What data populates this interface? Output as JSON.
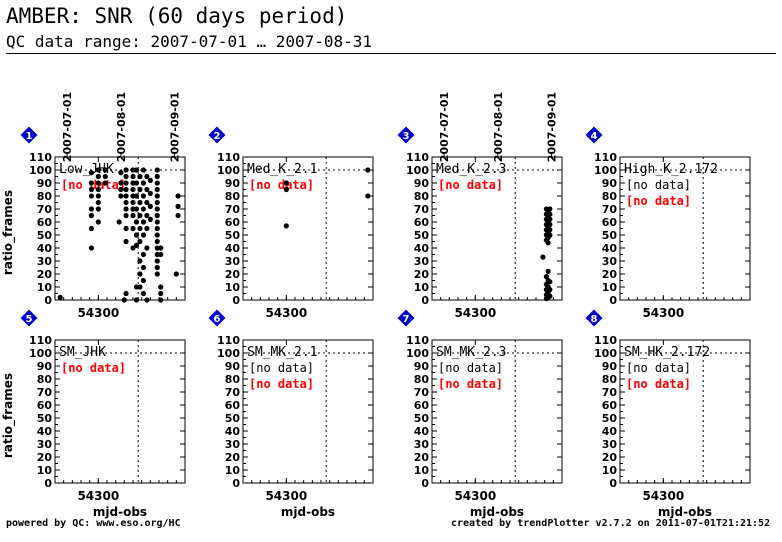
{
  "header": {
    "title": "AMBER: SNR (60 days period)",
    "subtitle": "QC data range: 2007-07-01 … 2007-08-31"
  },
  "footer": {
    "left": "powered by QC: www.eso.org/HC",
    "right": "created by trendPlotter v2.7.2 on 2011-07-01T21:21:52"
  },
  "colors": {
    "badge": "#0000cc",
    "nodata_red": "#ff0000",
    "nodata_black": "#000000",
    "points": "#000000"
  },
  "chart_data": {
    "type": "scatter",
    "x_axis": {
      "label": "mjd-obs",
      "xlim": [
        54275,
        54350
      ],
      "ticks": [
        54300
      ],
      "tick_labels": [
        "54300"
      ],
      "date_markers": [
        {
          "x": 54282,
          "label": "2007-07-01"
        },
        {
          "x": 54313,
          "label": "2007-08-01"
        },
        {
          "x": 54344,
          "label": "2007-09-01"
        }
      ],
      "vline_at": 54323
    },
    "y_axis": {
      "label": "ratio_frames",
      "ylim": [
        0,
        110
      ],
      "ticks": [
        0,
        10,
        20,
        30,
        40,
        50,
        60,
        70,
        80,
        90,
        100,
        110
      ],
      "hline_at": 100
    },
    "panels": [
      {
        "badge": "1",
        "name": "Low_JHK",
        "show_dates": true,
        "show_ylabel": true,
        "show_xlabel": false,
        "notes": [
          {
            "text": "[no data]",
            "color": "red"
          }
        ],
        "points": [
          [
            54278,
            2
          ],
          [
            54296,
            40
          ],
          [
            54296,
            55
          ],
          [
            54296,
            65
          ],
          [
            54296,
            70
          ],
          [
            54296,
            80
          ],
          [
            54296,
            85
          ],
          [
            54296,
            90
          ],
          [
            54296,
            98
          ],
          [
            54300,
            60
          ],
          [
            54300,
            70
          ],
          [
            54300,
            75
          ],
          [
            54300,
            80
          ],
          [
            54300,
            85
          ],
          [
            54300,
            90
          ],
          [
            54300,
            95
          ],
          [
            54300,
            100
          ],
          [
            54304,
            90
          ],
          [
            54304,
            95
          ],
          [
            54304,
            100
          ],
          [
            54312,
            60
          ],
          [
            54313,
            80
          ],
          [
            54313,
            85
          ],
          [
            54313,
            90
          ],
          [
            54313,
            98
          ],
          [
            54315,
            0
          ],
          [
            54316,
            5
          ],
          [
            54316,
            45
          ],
          [
            54316,
            55
          ],
          [
            54316,
            65
          ],
          [
            54316,
            70
          ],
          [
            54316,
            75
          ],
          [
            54316,
            80
          ],
          [
            54316,
            85
          ],
          [
            54316,
            90
          ],
          [
            54316,
            95
          ],
          [
            54316,
            100
          ],
          [
            54320,
            40
          ],
          [
            54320,
            55
          ],
          [
            54320,
            65
          ],
          [
            54320,
            70
          ],
          [
            54320,
            75
          ],
          [
            54320,
            80
          ],
          [
            54320,
            85
          ],
          [
            54320,
            90
          ],
          [
            54320,
            95
          ],
          [
            54320,
            100
          ],
          [
            54322,
            0
          ],
          [
            54322,
            10
          ],
          [
            54322,
            42
          ],
          [
            54322,
            50
          ],
          [
            54322,
            60
          ],
          [
            54322,
            70
          ],
          [
            54322,
            80
          ],
          [
            54322,
            90
          ],
          [
            54322,
            100
          ],
          [
            54324,
            10
          ],
          [
            54324,
            20
          ],
          [
            54324,
            30
          ],
          [
            54324,
            45
          ],
          [
            54324,
            55
          ],
          [
            54324,
            65
          ],
          [
            54324,
            75
          ],
          [
            54324,
            85
          ],
          [
            54324,
            95
          ],
          [
            54326,
            5
          ],
          [
            54326,
            15
          ],
          [
            54326,
            25
          ],
          [
            54326,
            35
          ],
          [
            54326,
            50
          ],
          [
            54326,
            60
          ],
          [
            54326,
            70
          ],
          [
            54326,
            80
          ],
          [
            54326,
            90
          ],
          [
            54326,
            100
          ],
          [
            54328,
            0
          ],
          [
            54328,
            40
          ],
          [
            54328,
            55
          ],
          [
            54328,
            65
          ],
          [
            54328,
            75
          ],
          [
            54328,
            85
          ],
          [
            54328,
            95
          ],
          [
            54330,
            62
          ],
          [
            54330,
            72
          ],
          [
            54330,
            82
          ],
          [
            54330,
            92
          ],
          [
            54334,
            20
          ],
          [
            54334,
            25
          ],
          [
            54334,
            30
          ],
          [
            54334,
            35
          ],
          [
            54334,
            40
          ],
          [
            54334,
            45
          ],
          [
            54334,
            50
          ],
          [
            54334,
            55
          ],
          [
            54334,
            60
          ],
          [
            54334,
            65
          ],
          [
            54334,
            70
          ],
          [
            54334,
            75
          ],
          [
            54334,
            80
          ],
          [
            54334,
            85
          ],
          [
            54334,
            90
          ],
          [
            54334,
            95
          ],
          [
            54334,
            100
          ],
          [
            54336,
            0
          ],
          [
            54336,
            5
          ],
          [
            54336,
            10
          ],
          [
            54336,
            35
          ],
          [
            54336,
            40
          ],
          [
            54345,
            20
          ],
          [
            54346,
            65
          ],
          [
            54346,
            72
          ],
          [
            54346,
            80
          ]
        ]
      },
      {
        "badge": "2",
        "name": "Med_K_2.1",
        "show_dates": false,
        "show_ylabel": false,
        "show_xlabel": false,
        "notes": [
          {
            "text": "[no data]",
            "color": "red"
          }
        ],
        "points": [
          [
            54300,
            57
          ],
          [
            54300,
            85
          ],
          [
            54300,
            90
          ],
          [
            54347,
            100
          ],
          [
            54347,
            80
          ]
        ]
      },
      {
        "badge": "3",
        "name": "Med_K_2.3",
        "show_dates": true,
        "show_ylabel": false,
        "show_xlabel": false,
        "notes": [
          {
            "text": "[no data]",
            "color": "red"
          }
        ],
        "points": [
          [
            54341,
            70
          ],
          [
            54341,
            66
          ],
          [
            54341,
            62
          ],
          [
            54341,
            58
          ],
          [
            54341,
            54
          ],
          [
            54341,
            50
          ],
          [
            54341,
            46
          ],
          [
            54342,
            68
          ],
          [
            54342,
            64
          ],
          [
            54342,
            60
          ],
          [
            54342,
            56
          ],
          [
            54342,
            52
          ],
          [
            54342,
            48
          ],
          [
            54342,
            44
          ],
          [
            54343,
            70
          ],
          [
            54343,
            66
          ],
          [
            54343,
            62
          ],
          [
            54343,
            58
          ],
          [
            54343,
            54
          ],
          [
            54343,
            50
          ],
          [
            54339,
            33
          ],
          [
            54341,
            18
          ],
          [
            54341,
            12
          ],
          [
            54341,
            8
          ],
          [
            54341,
            4
          ],
          [
            54341,
            1
          ],
          [
            54342,
            22
          ],
          [
            54342,
            15
          ],
          [
            54342,
            10
          ],
          [
            54342,
            6
          ],
          [
            54342,
            2
          ],
          [
            54343,
            14
          ],
          [
            54343,
            8
          ],
          [
            54343,
            3
          ]
        ]
      },
      {
        "badge": "4",
        "name": "High_K_2.172",
        "show_dates": false,
        "show_ylabel": false,
        "show_xlabel": false,
        "notes": [
          {
            "text": "[no data]",
            "color": "black"
          },
          {
            "text": "[no data]",
            "color": "red"
          }
        ],
        "points": []
      },
      {
        "badge": "5",
        "name": "SM_JHK",
        "show_dates": false,
        "show_ylabel": true,
        "show_xlabel": true,
        "notes": [
          {
            "text": "[no data]",
            "color": "red"
          }
        ],
        "points": []
      },
      {
        "badge": "6",
        "name": "SM_MK_2.1",
        "show_dates": false,
        "show_ylabel": false,
        "show_xlabel": true,
        "notes": [
          {
            "text": "[no data]",
            "color": "black"
          },
          {
            "text": "[no data]",
            "color": "red"
          }
        ],
        "points": []
      },
      {
        "badge": "7",
        "name": "SM_MK_2.3",
        "show_dates": false,
        "show_ylabel": false,
        "show_xlabel": true,
        "notes": [
          {
            "text": "[no data]",
            "color": "black"
          },
          {
            "text": "[no data]",
            "color": "red"
          }
        ],
        "points": []
      },
      {
        "badge": "8",
        "name": "SM_HK_2.172",
        "show_dates": false,
        "show_ylabel": false,
        "show_xlabel": true,
        "notes": [
          {
            "text": "[no data]",
            "color": "black"
          },
          {
            "text": "[no data]",
            "color": "red"
          }
        ],
        "points": []
      }
    ]
  }
}
